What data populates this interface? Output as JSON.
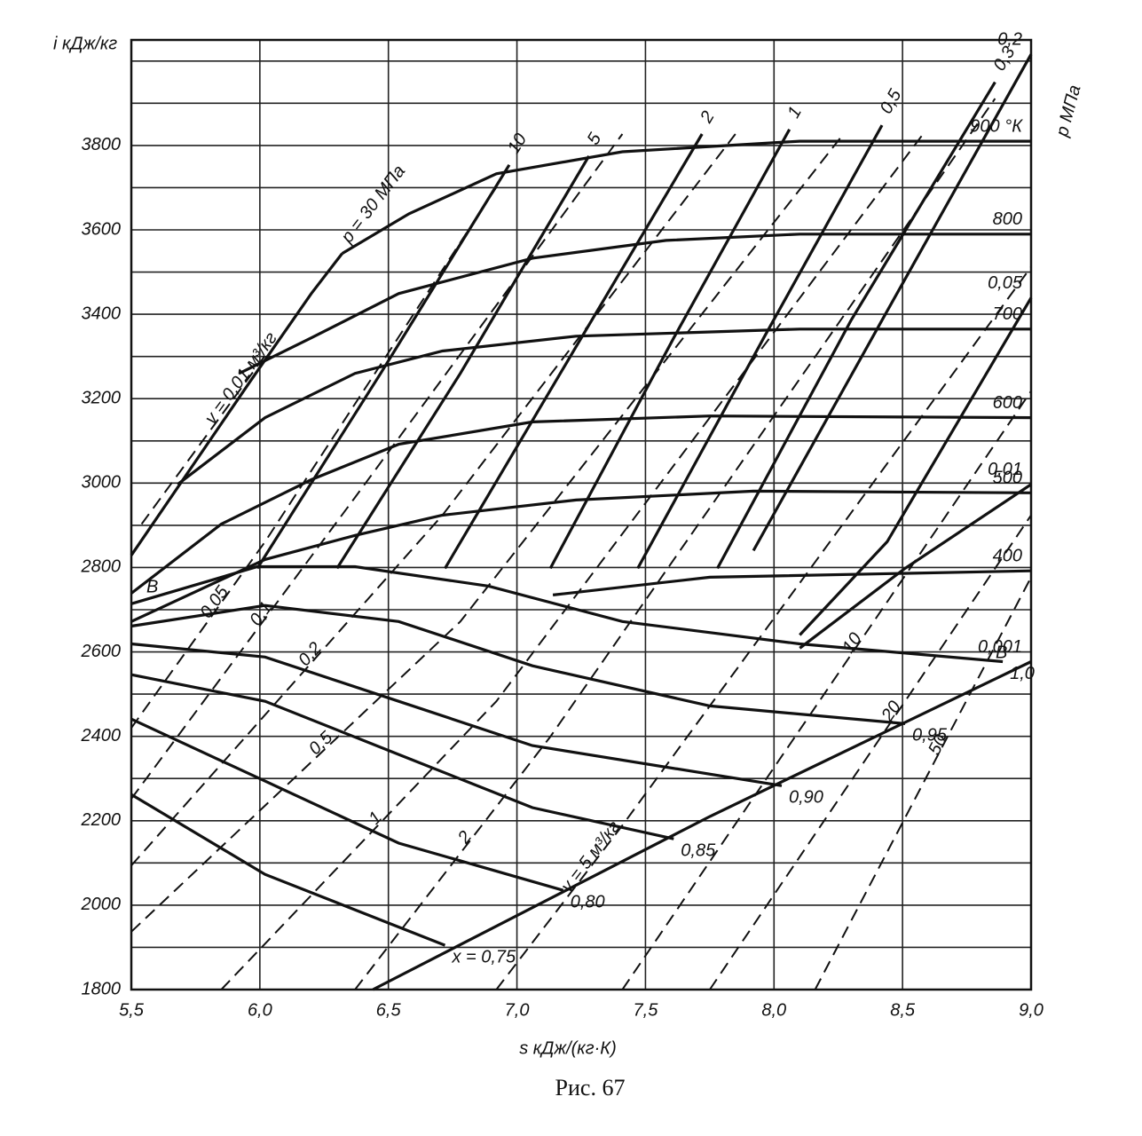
{
  "chart_data": {
    "type": "line",
    "y_label": "i  кДж/кг",
    "x_label": "s  кДж/(кг·К)",
    "caption": "Рис. 67",
    "annotations": [
      "р МПа",
      "В",
      "В"
    ],
    "xlim": [
      5.5,
      9.0
    ],
    "ylim": [
      1800,
      4050
    ],
    "xticks": [
      {
        "value": 5.5,
        "label": "5,5"
      },
      {
        "value": 6.0,
        "label": "6,0"
      },
      {
        "value": 6.5,
        "label": "6,5"
      },
      {
        "value": 7.0,
        "label": "7,0"
      },
      {
        "value": 7.5,
        "label": "7,5"
      },
      {
        "value": 8.0,
        "label": "8,0"
      },
      {
        "value": 8.5,
        "label": "8,5"
      },
      {
        "value": 9.0,
        "label": "9,0"
      }
    ],
    "yticks": [
      1800,
      2000,
      2200,
      2400,
      2600,
      2800,
      3000,
      3200,
      3400,
      3600,
      3800
    ],
    "y_minor_grid": [
      1900,
      2100,
      2300,
      2500,
      2700,
      2900,
      3100,
      3300,
      3500,
      3700,
      3900,
      4000
    ],
    "grid": true,
    "series": [
      {
        "name": "900 °К",
        "color": "#111",
        "style": "solid",
        "x": [
          6.32,
          6.58,
          6.92,
          7.41,
          8.1,
          9.0
        ],
        "values": [
          3544,
          3638,
          3733,
          3785,
          3810,
          3810
        ]
      },
      {
        "name": "800",
        "color": "#111",
        "style": "solid",
        "x": [
          5.92,
          6.2,
          6.54,
          7.06,
          7.58,
          8.1,
          9.0
        ],
        "values": [
          3260,
          3344,
          3449,
          3533,
          3575,
          3590,
          3590
        ]
      },
      {
        "name": "700",
        "color": "#111",
        "style": "solid",
        "x": [
          5.68,
          6.02,
          6.37,
          6.71,
          7.23,
          8.1,
          9.0
        ],
        "values": [
          2997,
          3155,
          3260,
          3313,
          3348,
          3365,
          3365
        ]
      },
      {
        "name": "600",
        "color": "#111",
        "style": "solid",
        "x": [
          5.5,
          5.85,
          6.2,
          6.54,
          7.06,
          7.75,
          9.0
        ],
        "values": [
          2739,
          2903,
          3008,
          3092,
          3145,
          3159,
          3155
        ]
      },
      {
        "name": "500",
        "color": "#111",
        "style": "solid",
        "x": [
          5.5,
          6.02,
          6.37,
          6.71,
          7.23,
          7.92,
          9.0
        ],
        "values": [
          2672,
          2819,
          2876,
          2924,
          2960,
          2981,
          2977
        ]
      },
      {
        "name": "400",
        "color": "#111",
        "style": "solid",
        "x": [
          7.14,
          7.75,
          9.0
        ],
        "values": [
          2735,
          2777,
          2792
        ]
      },
      {
        "name": "1,0",
        "color": "#111",
        "style": "solid",
        "x": [
          5.5,
          5.99,
          6.37,
          6.89,
          7.41,
          8.1,
          8.89
        ],
        "values": [
          2714,
          2802,
          2802,
          2756,
          2672,
          2619,
          2577
        ]
      },
      {
        "name": "0,95",
        "color": "#111",
        "style": "solid",
        "x": [
          5.5,
          6.02,
          6.54,
          7.06,
          7.75,
          8.51
        ],
        "values": [
          2661,
          2710,
          2672,
          2567,
          2472,
          2430
        ]
      },
      {
        "name": "0,90",
        "color": "#111",
        "style": "solid",
        "x": [
          5.5,
          6.02,
          6.54,
          7.06,
          8.03
        ],
        "values": [
          2619,
          2588,
          2483,
          2378,
          2283
        ]
      },
      {
        "name": "0,85",
        "color": "#111",
        "style": "solid",
        "x": [
          5.5,
          6.02,
          6.54,
          7.06,
          7.61
        ],
        "values": [
          2546,
          2483,
          2357,
          2231,
          2157
        ]
      },
      {
        "name": "0,80",
        "color": "#111",
        "style": "solid",
        "x": [
          5.5,
          6.02,
          6.54,
          7.18
        ],
        "values": [
          2441,
          2294,
          2147,
          2035
        ]
      },
      {
        "name": "x = 0,75",
        "color": "#111",
        "style": "solid",
        "x": [
          5.5,
          6.02,
          6.72
        ],
        "values": [
          2262,
          2073,
          1905
        ]
      },
      {
        "name": "р = 30 МПа",
        "color": "#111",
        "style": "solid",
        "x": [
          5.5,
          5.96,
          6.2,
          6.32
        ],
        "values": [
          2829,
          3239,
          3449,
          3544
        ]
      },
      {
        "name": "10",
        "color": "#111",
        "style": "solid",
        "x": [
          5.99,
          6.47,
          6.97
        ],
        "values": [
          2798,
          3260,
          3754
        ]
      },
      {
        "name": "5",
        "color": "#111",
        "style": "solid",
        "x": [
          6.3,
          6.78,
          7.28
        ],
        "values": [
          2798,
          3260,
          3775
        ]
      },
      {
        "name": "2",
        "color": "#111",
        "style": "solid",
        "x": [
          6.72,
          7.23,
          7.72
        ],
        "values": [
          2798,
          3323,
          3827
        ]
      },
      {
        "name": "1",
        "color": "#111",
        "style": "solid",
        "x": [
          7.13,
          7.61,
          8.06
        ],
        "values": [
          2798,
          3344,
          3838
        ]
      },
      {
        "name": "0,5",
        "color": "#111",
        "style": "solid",
        "x": [
          7.47,
          7.96,
          8.42
        ],
        "values": [
          2798,
          3344,
          3848
        ]
      },
      {
        "name": "0,2",
        "color": "#111",
        "style": "solid",
        "x": [
          7.92,
          8.42,
          9.0
        ],
        "values": [
          2840,
          3386,
          4016
        ]
      },
      {
        "name": "0,3",
        "color": "#111",
        "style": "solid",
        "x": [
          7.78,
          8.3,
          8.86
        ],
        "values": [
          2798,
          3386,
          3950
        ]
      },
      {
        "name": "0,05",
        "color": "#111",
        "style": "solid",
        "x": [
          8.1,
          8.44,
          9.0
        ],
        "values": [
          2640,
          2861,
          3439
        ]
      },
      {
        "name": "0,01",
        "color": "#111",
        "style": "solid",
        "x": [
          8.1,
          8.51,
          9.0
        ],
        "values": [
          2609,
          2798,
          2997
        ]
      },
      {
        "name": "0,001",
        "color": "#111",
        "style": "solid",
        "x": [
          6.44,
          7.75,
          9.0
        ],
        "values": [
          1800,
          2210,
          2577
        ]
      },
      {
        "name": "v = 0,01 м³/кг",
        "color": "#111",
        "style": "dashed",
        "x": [
          5.54,
          6.02
        ],
        "values": [
          2903,
          3302
        ]
      },
      {
        "name": "0,05",
        "color": "#111",
        "style": "dashed",
        "x": [
          5.5,
          6.02,
          6.92
        ],
        "values": [
          2420,
          2861,
          3701
        ]
      },
      {
        "name": "0,1",
        "color": "#111",
        "style": "dashed",
        "x": [
          5.5,
          6.37,
          7.41
        ],
        "values": [
          2252,
          2966,
          3827
        ]
      },
      {
        "name": "0,2",
        "color": "#111",
        "style": "dashed",
        "x": [
          5.5,
          6.71,
          7.85
        ],
        "values": [
          2094,
          2924,
          3827
        ]
      },
      {
        "name": "0,5",
        "color": "#111",
        "style": "dashed",
        "x": [
          5.5,
          6.78,
          8.27
        ],
        "values": [
          1937,
          2672,
          3827
        ]
      },
      {
        "name": "1",
        "color": "#111",
        "style": "dashed",
        "x": [
          5.85,
          6.92,
          8.58
        ],
        "values": [
          1800,
          2483,
          3827
        ]
      },
      {
        "name": "2",
        "color": "#111",
        "style": "dashed",
        "x": [
          6.37,
          7.13,
          8.86
        ],
        "values": [
          1800,
          2399,
          3911
        ]
      },
      {
        "name": "v = 5 м³/кг",
        "color": "#111",
        "style": "dashed",
        "x": [
          6.92,
          7.41,
          9.0
        ],
        "values": [
          1800,
          2189,
          3512
        ]
      },
      {
        "name": "10",
        "color": "#111",
        "style": "dashed",
        "x": [
          7.41,
          9.0
        ],
        "values": [
          1800,
          3218
        ]
      },
      {
        "name": "20",
        "color": "#111",
        "style": "dashed",
        "x": [
          7.75,
          9.0
        ],
        "values": [
          1800,
          2924
        ]
      },
      {
        "name": "50",
        "color": "#111",
        "style": "dashed",
        "x": [
          8.16,
          9.0
        ],
        "values": [
          1800,
          2777
        ]
      }
    ]
  }
}
